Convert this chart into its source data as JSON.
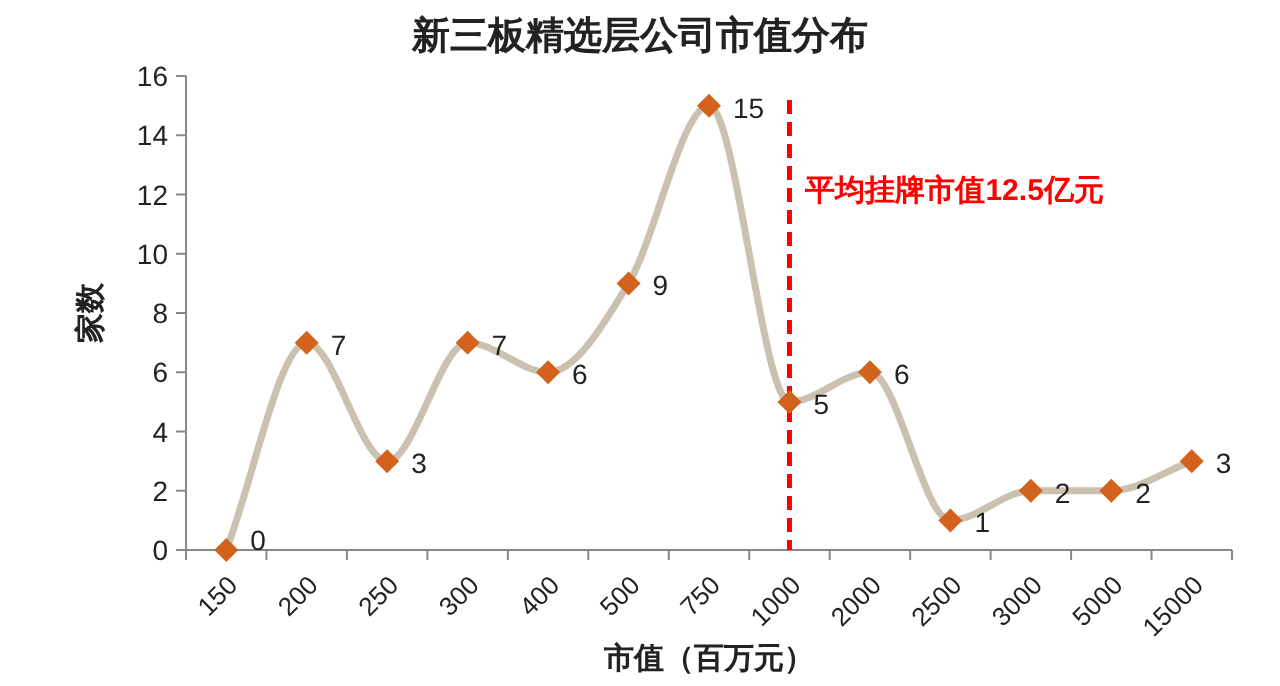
{
  "chart_data": {
    "type": "line",
    "title": "新三板精选层公司市值分布",
    "xlabel": "市值（百万元）",
    "ylabel": "家数",
    "categories": [
      "150",
      "200",
      "250",
      "300",
      "400",
      "500",
      "750",
      "1000",
      "2000",
      "2500",
      "3000",
      "5000",
      "15000"
    ],
    "series": [
      {
        "color": "#cbc1b0",
        "colors": [
          "#d2621c",
          "#d2621c",
          "#d2621c",
          "#d2621c",
          "#d2621c",
          "#d2621c",
          "#d2621c",
          "#d2621c",
          "#d2621c",
          "#d2621c",
          "#d2621c",
          "#d2621c",
          "#d2621c"
        ],
        "values": [
          0,
          7,
          3,
          7,
          6,
          9,
          15,
          5,
          6,
          1,
          2,
          2,
          3
        ]
      }
    ],
    "ylim": [
      0,
      16
    ],
    "yticks": [
      0,
      2,
      4,
      6,
      8,
      10,
      12,
      14,
      16
    ],
    "grid": false,
    "marker": "diamond",
    "line_style": "solid",
    "data_labels": true,
    "ref_lines": [
      {
        "axis": "x",
        "value": "1000",
        "label": "平均挂牌市值12.5亿元",
        "color": "#ff0000",
        "line_style": "dashed"
      }
    ]
  }
}
